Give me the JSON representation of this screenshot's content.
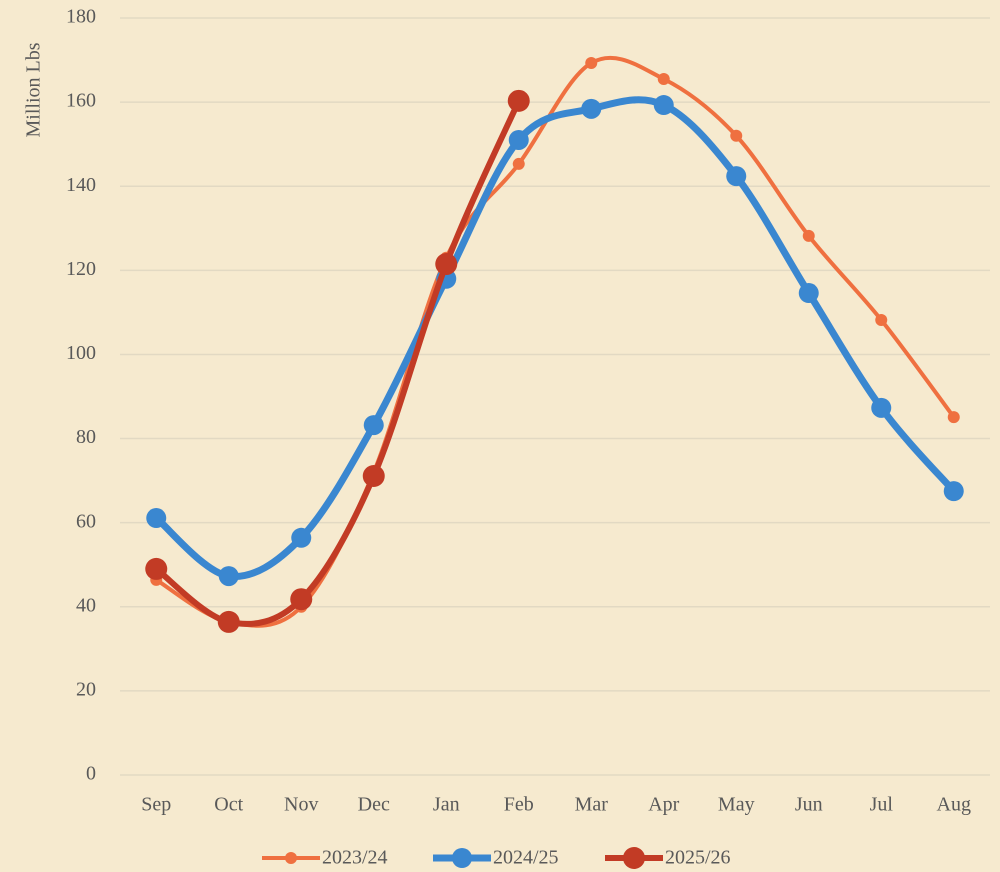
{
  "chart_data": {
    "type": "line",
    "y_label": "Million Lbs",
    "categories": [
      "Sep",
      "Oct",
      "Nov",
      "Dec",
      "Jan",
      "Feb",
      "Mar",
      "Apr",
      "May",
      "Jun",
      "Jul",
      "Aug"
    ],
    "series": [
      {
        "name": "2023/24",
        "color": "#ef7040",
        "values": [
          46.4,
          36.4,
          40,
          72,
          123,
          145.3,
          169.3,
          165.5,
          152,
          128.2,
          108.2,
          85.1
        ]
      },
      {
        "name": "2024/25",
        "color": "#3a87d0",
        "values": [
          61.1,
          47.3,
          56.4,
          83.2,
          118,
          151,
          158.4,
          159.3,
          142.4,
          114.6,
          87.3,
          67.5
        ]
      },
      {
        "name": "2025/26",
        "color": "#c23b25",
        "values": [
          49,
          36.4,
          41.8,
          71.1,
          121.5,
          160.3,
          null,
          null,
          null,
          null,
          null,
          null
        ]
      }
    ],
    "ylim": [
      0,
      180
    ],
    "yticks": [
      0,
      20,
      40,
      60,
      80,
      100,
      120,
      140,
      160,
      180
    ],
    "grid": true,
    "smooth": true,
    "legend": "bottom"
  }
}
